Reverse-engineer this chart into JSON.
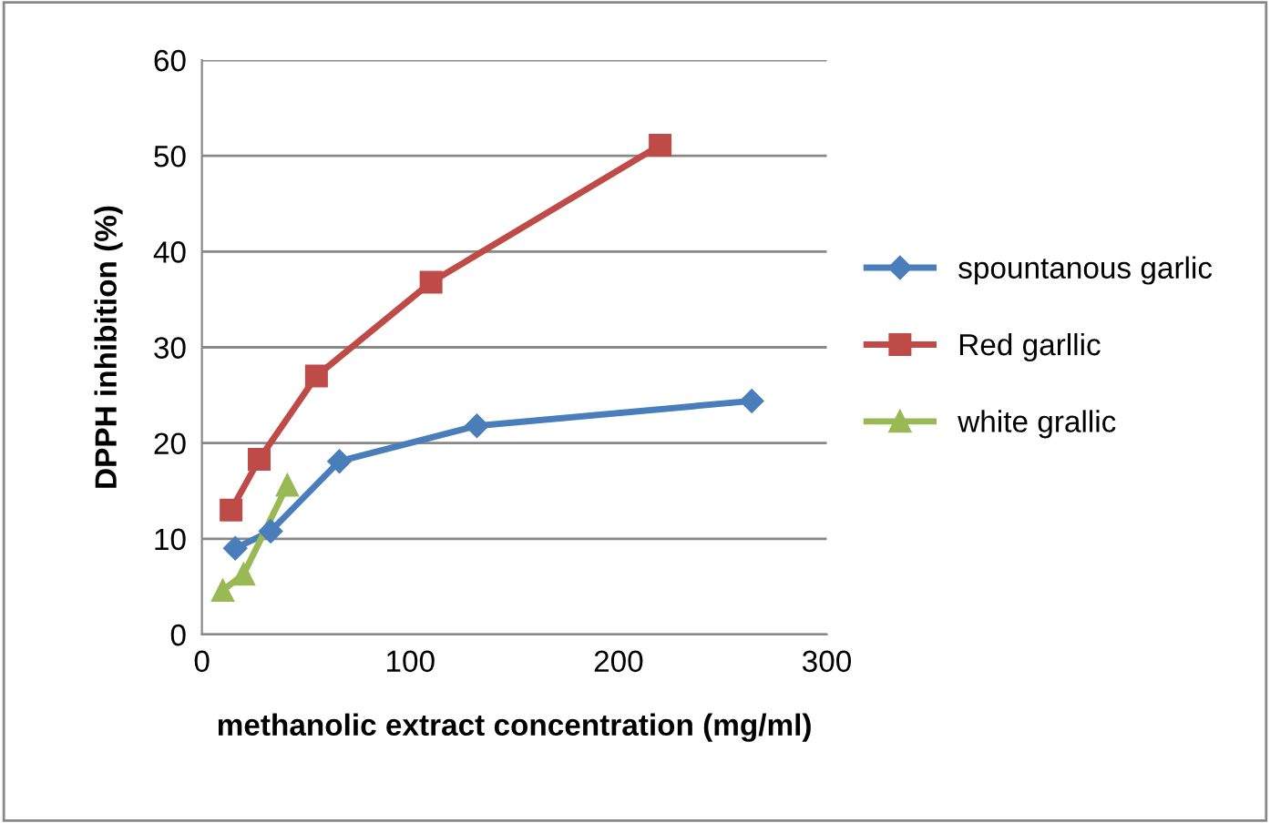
{
  "chart_data": {
    "type": "line",
    "xlabel": "methanolic extract concentration (mg/ml)",
    "ylabel": "DPPH inhibition (%)",
    "xlim": [
      0,
      300
    ],
    "xticks": [
      0,
      100,
      200,
      300
    ],
    "ylim": [
      0,
      60
    ],
    "yticks": [
      0,
      10,
      20,
      30,
      40,
      50,
      60
    ],
    "grid": "y",
    "legend": "right",
    "series": [
      {
        "name": "spountanous garlic",
        "color": "#4a7ebb",
        "marker": "diamond",
        "x": [
          16,
          33,
          66,
          132,
          264
        ],
        "values": [
          9.0,
          10.8,
          18.1,
          21.8,
          24.4
        ]
      },
      {
        "name": "Red garllic",
        "color": "#be4b48",
        "marker": "square",
        "x": [
          14,
          27.5,
          55,
          110,
          220
        ],
        "values": [
          13.0,
          18.3,
          27.0,
          36.8,
          51.1
        ]
      },
      {
        "name": "white grallic",
        "color": "#98b954",
        "marker": "triangle",
        "x": [
          10,
          20,
          41
        ],
        "values": [
          4.6,
          6.3,
          15.6
        ]
      }
    ]
  }
}
